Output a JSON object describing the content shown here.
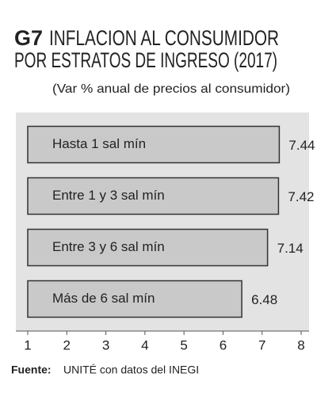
{
  "chart_data": {
    "type": "bar",
    "orientation": "horizontal",
    "title_label": "G7",
    "title": [
      "INFLACION AL CONSUMIDOR",
      "POR ESTRATOS DE INGRESO (2017)"
    ],
    "subtitle": "(Var % anual de precios al consumidor)",
    "categories": [
      "Hasta 1 sal mín",
      "Entre 1 y 3 sal mín",
      "Entre 3 y 6 sal mín",
      "Más de 6 sal mín"
    ],
    "values": [
      7.44,
      7.42,
      7.14,
      6.48
    ],
    "color": "#c9c9c9",
    "xlim": [
      1,
      8
    ],
    "xticks": [
      1,
      2,
      3,
      4,
      5,
      6,
      7,
      8
    ],
    "source_label": "Fuente:",
    "source": "UNITÉ con datos del INEGI"
  }
}
